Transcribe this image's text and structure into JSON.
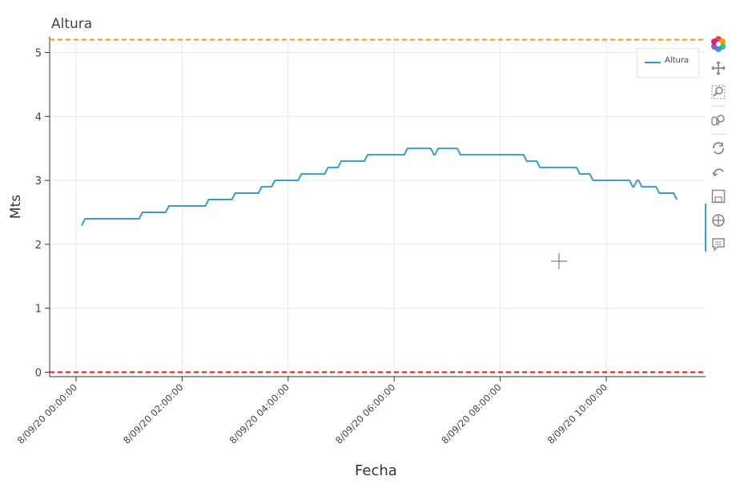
{
  "chart_data": {
    "type": "line",
    "title": "Altura",
    "xlabel": "Fecha",
    "ylabel": "Mts",
    "ylim": [
      0,
      5.2
    ],
    "xlim": [
      "8/09/20 00:00:00",
      "8/09/20 12:00:00"
    ],
    "y_ticks": [
      "0",
      "1",
      "2",
      "3",
      "4",
      "5"
    ],
    "x_ticks": [
      "8/09/20 00:00:00",
      "8/09/20 02:00:00",
      "8/09/20 04:00:00",
      "8/09/20 06:00:00",
      "8/09/20 08:00:00",
      "8/09/20 10:00:00"
    ],
    "grid": true,
    "legend_position": "top-right",
    "reference_lines": [
      {
        "y": 5.2,
        "color": "#f39c12",
        "style": "dashed"
      },
      {
        "y": 0.0,
        "color": "#e8190c",
        "style": "dashed"
      }
    ],
    "series": [
      {
        "name": "Altura",
        "color": "#3a9cc4",
        "x_hours": [
          0.1,
          0.17,
          1.0,
          1.25,
          1.5,
          1.75,
          2.0,
          2.25,
          2.5,
          2.75,
          3.0,
          3.25,
          3.5,
          3.75,
          4.0,
          4.25,
          4.5,
          4.75,
          5.0,
          5.25,
          5.5,
          5.75,
          6.0,
          6.25,
          6.5,
          6.75,
          6.83,
          6.92,
          7.0,
          7.25,
          7.5,
          7.75,
          8.0,
          8.25,
          8.5,
          8.75,
          9.0,
          9.25,
          9.5,
          9.75,
          10.0,
          10.25,
          10.5,
          10.58,
          10.67,
          10.75,
          11.0,
          11.25,
          11.33
        ],
        "y": [
          2.3,
          2.4,
          2.4,
          2.5,
          2.5,
          2.6,
          2.6,
          2.6,
          2.7,
          2.7,
          2.8,
          2.8,
          2.9,
          3.0,
          3.0,
          3.1,
          3.1,
          3.2,
          3.3,
          3.3,
          3.4,
          3.4,
          3.4,
          3.5,
          3.5,
          3.4,
          3.5,
          3.5,
          3.5,
          3.4,
          3.4,
          3.4,
          3.4,
          3.4,
          3.3,
          3.2,
          3.2,
          3.2,
          3.1,
          3.0,
          3.0,
          3.0,
          2.9,
          3.0,
          2.9,
          2.9,
          2.8,
          2.8,
          2.7
        ]
      }
    ]
  },
  "legend": {
    "label": "Altura"
  },
  "toolbar": {
    "icons": [
      "bokeh-logo-icon",
      "pan-icon",
      "box-zoom-icon",
      "wheel-zoom-icon",
      "reset-icon",
      "undo-icon",
      "save-icon",
      "crosshair-icon",
      "hover-icon"
    ]
  }
}
